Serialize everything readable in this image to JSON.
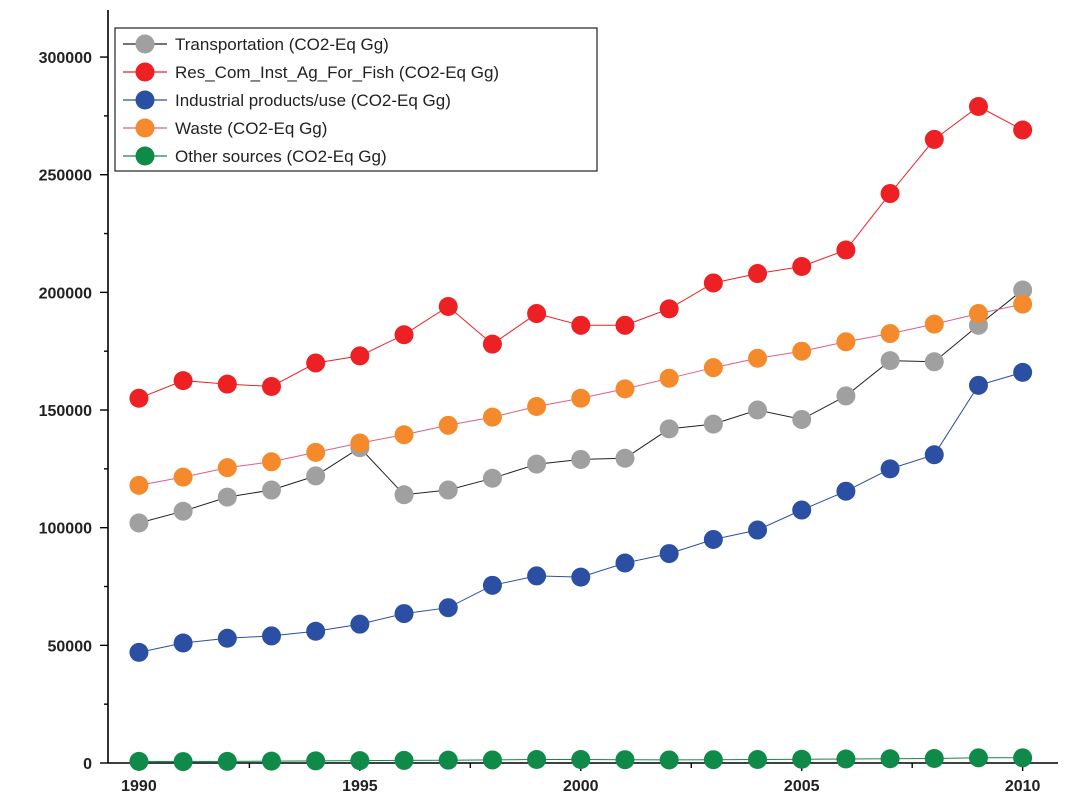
{
  "chart_data": {
    "type": "line",
    "title": "",
    "xlabel": "",
    "ylabel": "",
    "xlim": [
      1989.3,
      2010.8
    ],
    "ylim": [
      0,
      320000
    ],
    "x_ticks": [
      1990,
      1995,
      2000,
      2005,
      2010
    ],
    "y_ticks": [
      0,
      50000,
      100000,
      150000,
      200000,
      250000,
      300000
    ],
    "grid": false,
    "legend_position": "top-left",
    "x": [
      1990,
      1991,
      1992,
      1993,
      1994,
      1995,
      1996,
      1997,
      1998,
      1999,
      2000,
      2001,
      2002,
      2003,
      2004,
      2005,
      2006,
      2007,
      2008,
      2009,
      2010
    ],
    "series": [
      {
        "name": "Transportation (CO2-Eq Gg)",
        "color": "#a0a0a0",
        "line_color": "#222222",
        "values": [
          102000,
          107000,
          113000,
          116000,
          122000,
          134000,
          114000,
          116000,
          121000,
          127000,
          129000,
          129500,
          142000,
          144000,
          150000,
          146000,
          156000,
          171000,
          170500,
          186000,
          201000
        ]
      },
      {
        "name": "Res_Com_Inst_Ag_For_Fish (CO2-Eq Gg)",
        "color": "#ed2024",
        "line_color": "#ed2024",
        "values": [
          155000,
          162500,
          161000,
          160000,
          170000,
          173000,
          182000,
          194000,
          178000,
          191000,
          186000,
          186000,
          193000,
          204000,
          208000,
          211000,
          218000,
          242000,
          265000,
          279000,
          269000
        ]
      },
      {
        "name": "Industrial products/use (CO2-Eq Gg)",
        "color": "#2b4fa2",
        "line_color": "#2b4fa2",
        "values": [
          47000,
          51000,
          53000,
          54000,
          56000,
          59000,
          63500,
          66000,
          75500,
          79500,
          79000,
          85000,
          89000,
          95000,
          99000,
          107500,
          115500,
          125000,
          131000,
          160500,
          166000
        ]
      },
      {
        "name": "Waste (CO2-Eq Gg)",
        "color": "#f58a2c",
        "line_color": "#e05f86",
        "values": [
          118000,
          121500,
          125500,
          128000,
          132000,
          136000,
          139500,
          143500,
          147000,
          151500,
          155000,
          159000,
          163500,
          168000,
          172000,
          175000,
          179000,
          182500,
          186500,
          191000,
          195000
        ]
      },
      {
        "name": "Other sources (CO2-Eq Gg)",
        "color": "#0f8a48",
        "line_color": "#0f8a48",
        "values": [
          700,
          600,
          700,
          800,
          900,
          1000,
          1100,
          1200,
          1300,
          1500,
          1500,
          1400,
          1300,
          1400,
          1500,
          1600,
          1700,
          1800,
          1900,
          2200,
          2200
        ]
      }
    ]
  }
}
